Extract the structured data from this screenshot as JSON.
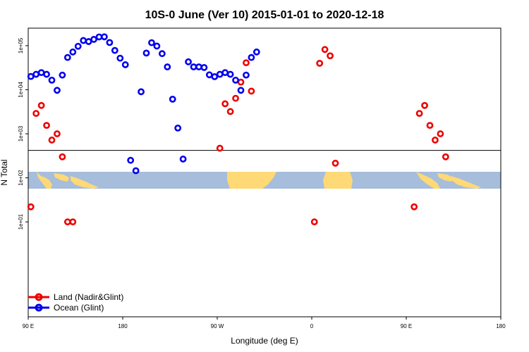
{
  "chart_data": {
    "type": "scatter",
    "title": "10S-0 June (Ver 10)   2015-01-01 to 2020-12-18",
    "xlabel": "Longitude (deg E)",
    "ylabel": "N Total",
    "xscale": "shifted-longitude",
    "yscale": "log",
    "xlim": [
      "90 E",
      "180"
    ],
    "ylim": [
      0.07,
      250000
    ],
    "x_ticks": [
      "90 E",
      "180",
      "90 W",
      "0",
      "90 E",
      "180"
    ],
    "y_ticks": [
      "1e+01",
      "1e+02",
      "1e+03",
      "1e+04",
      "1e+05"
    ],
    "y_tick_values": [
      10,
      100,
      1000,
      10000,
      100000
    ],
    "reference_line_y": 420,
    "background": "world map strip for 10S-0 latitude band",
    "legend": {
      "position": "bottom-left"
    },
    "colors": {
      "land": "#ee0000",
      "ocean": "#0000ee",
      "map_ocean": "#a6bddb",
      "map_land": "#fed976"
    },
    "series": [
      {
        "name": "Land (Nadir&Glint)",
        "color": "#ee0000",
        "points": [
          {
            "lon": "92.5 E",
            "y": 22
          },
          {
            "lon": "97.5 E",
            "y": 2900
          },
          {
            "lon": "102.5 E",
            "y": 4400
          },
          {
            "lon": "107.5 E",
            "y": 1550
          },
          {
            "lon": "112.5 E",
            "y": 720
          },
          {
            "lon": "117.5 E",
            "y": 1000
          },
          {
            "lon": "122.5 E",
            "y": 300
          },
          {
            "lon": "127.5 E",
            "y": 10
          },
          {
            "lon": "87.5 W",
            "y": 470
          },
          {
            "lon": "82.5 W",
            "y": 4800
          },
          {
            "lon": "77.5 W",
            "y": 3200
          },
          {
            "lon": "72.5 W",
            "y": 6400
          },
          {
            "lon": "67.5 W",
            "y": 14900
          },
          {
            "lon": "62.5 W",
            "y": 41000
          },
          {
            "lon": "57.5 W",
            "y": 9300
          },
          {
            "lon": "2.5 E",
            "y": 10
          },
          {
            "lon": "7.5 E",
            "y": 39900
          },
          {
            "lon": "12.5 E",
            "y": 82000
          },
          {
            "lon": "17.5 E",
            "y": 59000
          },
          {
            "lon": "22.5 E",
            "y": 215
          },
          {
            "lon": "97.5 E",
            "y": 22
          },
          {
            "lon": "102.5 E",
            "y": 2900
          },
          {
            "lon": "107.5 E",
            "y": 4400
          },
          {
            "lon": "112.5 E",
            "y": 1550
          },
          {
            "lon": "117.5 E",
            "y": 720
          },
          {
            "lon": "122.5 E",
            "y": 1000
          },
          {
            "lon": "127.5 E",
            "y": 300
          },
          {
            "lon": "132.5 E",
            "y": 10
          }
        ]
      },
      {
        "name": "Ocean (Glint)",
        "color": "#0000ee",
        "points": [
          {
            "lon": "92.5 E",
            "y": 20000
          },
          {
            "lon": "97.5 E",
            "y": 22400
          },
          {
            "lon": "102.5 E",
            "y": 24500
          },
          {
            "lon": "107.5 E",
            "y": 22400
          },
          {
            "lon": "112.5 E",
            "y": 16500
          },
          {
            "lon": "117.5 E",
            "y": 9700
          },
          {
            "lon": "122.5 E",
            "y": 21500
          },
          {
            "lon": "127.5 E",
            "y": 54000
          },
          {
            "lon": "132.5 E",
            "y": 72000
          },
          {
            "lon": "137.5 E",
            "y": 97000
          },
          {
            "lon": "142.5 E",
            "y": 131000
          },
          {
            "lon": "147.5 E",
            "y": 124000
          },
          {
            "lon": "152.5 E",
            "y": 139000
          },
          {
            "lon": "157.5 E",
            "y": 158000
          },
          {
            "lon": "162.5 E",
            "y": 159000
          },
          {
            "lon": "167.5 E",
            "y": 118000
          },
          {
            "lon": "172.5 E",
            "y": 78000
          },
          {
            "lon": "177.5 E",
            "y": 52000
          },
          {
            "lon": "177.5 W",
            "y": 37000
          },
          {
            "lon": "172.5 W",
            "y": 250
          },
          {
            "lon": "167.5 W",
            "y": 145
          },
          {
            "lon": "162.5 W",
            "y": 9000
          },
          {
            "lon": "157.5 W",
            "y": 68000
          },
          {
            "lon": "152.5 W",
            "y": 117000
          },
          {
            "lon": "147.5 W",
            "y": 98000
          },
          {
            "lon": "142.5 W",
            "y": 66000
          },
          {
            "lon": "137.5 W",
            "y": 33000
          },
          {
            "lon": "132.5 W",
            "y": 6100
          },
          {
            "lon": "127.5 W",
            "y": 1350
          },
          {
            "lon": "122.5 W",
            "y": 267
          },
          {
            "lon": "117.5 W",
            "y": 43000
          },
          {
            "lon": "112.5 W",
            "y": 33000
          },
          {
            "lon": "107.5 W",
            "y": 33000
          },
          {
            "lon": "102.5 W",
            "y": 32000
          },
          {
            "lon": "97.5 W",
            "y": 21800
          },
          {
            "lon": "92.5 W",
            "y": 19800
          },
          {
            "lon": "87.5 W",
            "y": 22400
          },
          {
            "lon": "82.5 W",
            "y": 24500
          },
          {
            "lon": "77.5 W",
            "y": 22400
          },
          {
            "lon": "72.5 W",
            "y": 16500
          },
          {
            "lon": "67.5 W",
            "y": 9700
          },
          {
            "lon": "62.5 W",
            "y": 21500
          },
          {
            "lon": "57.5 W",
            "y": 54000
          },
          {
            "lon": "52.5 W",
            "y": 72000
          }
        ]
      }
    ]
  }
}
